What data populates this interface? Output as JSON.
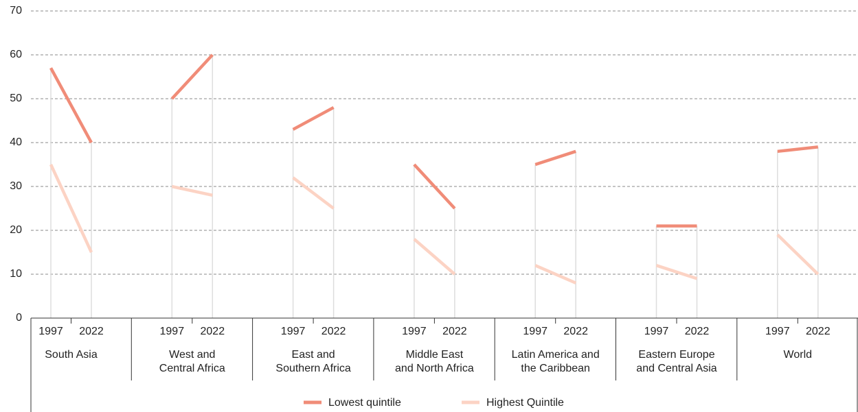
{
  "chart_data": {
    "type": "slope",
    "groups": [
      "South Asia",
      "West and Central Africa",
      "East and Southern Africa",
      "Middle East and North Africa",
      "Latin America and the Caribbean",
      "Eastern Europe and Central Asia",
      "World"
    ],
    "categories": [
      "1997",
      "2022"
    ],
    "series": [
      {
        "name": "Lowest quintile",
        "color": "#f08c78",
        "values": [
          [
            57,
            40
          ],
          [
            50,
            60
          ],
          [
            43,
            48
          ],
          [
            35,
            25
          ],
          [
            35,
            38
          ],
          [
            21,
            21
          ],
          [
            38,
            39
          ]
        ]
      },
      {
        "name": "Highest Quintile",
        "color": "#fcd3c4",
        "values": [
          [
            35,
            15
          ],
          [
            30,
            28
          ],
          [
            32,
            25
          ],
          [
            18,
            10
          ],
          [
            12,
            8
          ],
          [
            12,
            9
          ],
          [
            19,
            10
          ]
        ]
      }
    ],
    "ylim": [
      0,
      70
    ],
    "yticks": [
      0,
      10,
      20,
      30,
      40,
      50,
      60,
      70
    ],
    "grid": true,
    "legend": "bottom"
  }
}
